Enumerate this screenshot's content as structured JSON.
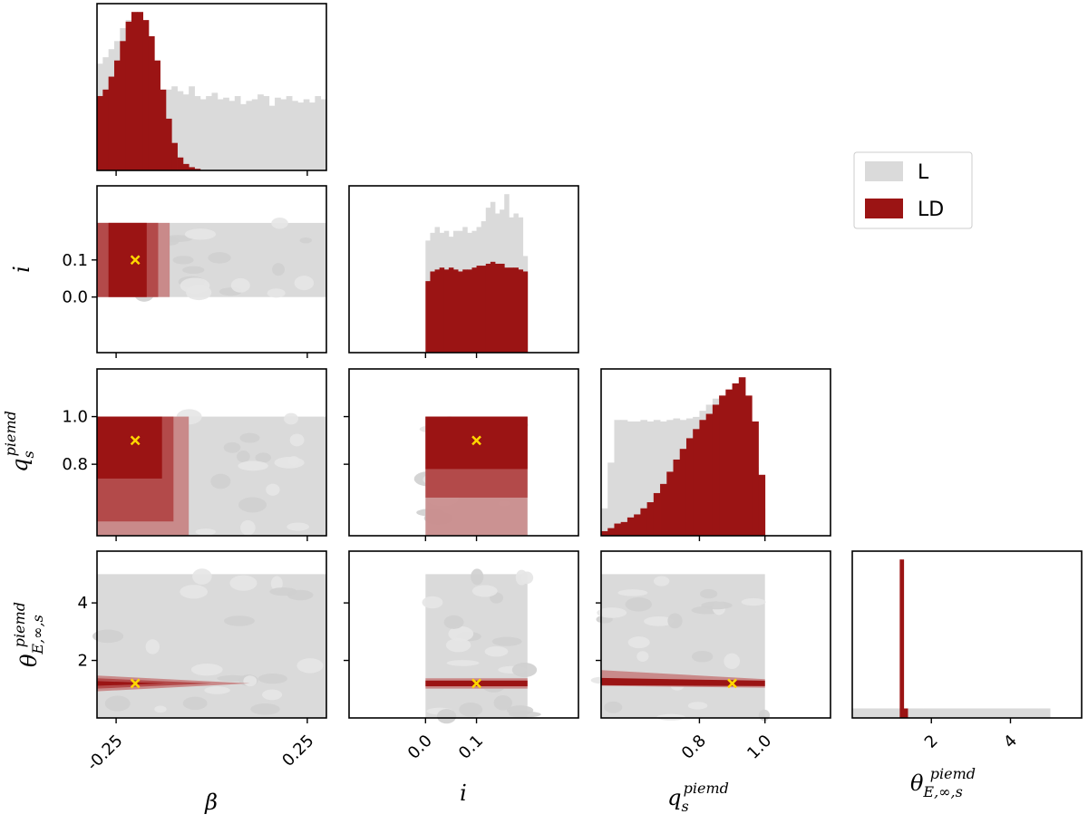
{
  "chart_data": {
    "type": "corner",
    "colors": {
      "L": "#dadada",
      "LD": "#9b1414",
      "LD_mid": "#b34a4a",
      "LD_light": "#c98a8a",
      "truth": "#ffd700",
      "L_light": "#e6e6e6",
      "L_dark": "#cfcfcf"
    },
    "legend": {
      "placement": "right",
      "entries": [
        {
          "label": "L",
          "color": "#dadada"
        },
        {
          "label": "LD",
          "color": "#9b1414"
        }
      ]
    },
    "parameters": [
      {
        "key": "beta",
        "symbol": "β",
        "range": [
          -0.3,
          0.3
        ],
        "truth": -0.2,
        "ticks": [
          {
            "value": -0.25,
            "label": "-0.25"
          },
          {
            "value": 0.25,
            "label": "0.25"
          }
        ],
        "prior": [
          -0.3,
          0.3
        ]
      },
      {
        "key": "i",
        "symbol": "i",
        "range": [
          -0.15,
          0.3
        ],
        "truth": 0.1,
        "ticks": [
          {
            "value": 0.0,
            "label": "0.0"
          },
          {
            "value": 0.1,
            "label": "0.1"
          }
        ],
        "prior": [
          0.0,
          0.2
        ]
      },
      {
        "key": "q",
        "symbol": "q",
        "sub": "s",
        "sup": "piemd",
        "range": [
          0.5,
          1.2
        ],
        "truth": 0.9,
        "ticks": [
          {
            "value": 0.8,
            "label": "0.8"
          },
          {
            "value": 1.0,
            "label": "1.0"
          }
        ],
        "prior": [
          0.5,
          1.0
        ]
      },
      {
        "key": "theta",
        "symbol": "θ",
        "sub": "E,∞,s",
        "sup": "piemd",
        "range": [
          0.0,
          5.8
        ],
        "truth": 1.2,
        "ticks": [
          {
            "value": 2,
            "label": "2"
          },
          {
            "value": 4,
            "label": "4"
          }
        ],
        "prior": [
          0.0,
          5.0
        ]
      }
    ],
    "histograms": {
      "beta": {
        "bins": [
          -0.3,
          0.3
        ],
        "L": [
          66,
          70,
          75,
          80,
          88,
          93,
          95,
          85,
          70,
          52,
          44,
          46,
          50,
          52,
          49,
          47,
          52,
          46,
          44,
          46,
          48,
          44,
          45,
          43,
          46,
          41,
          43,
          44,
          47,
          46,
          40,
          45,
          44,
          46,
          43,
          42,
          44,
          42,
          46,
          44
        ],
        "LD": [
          46,
          50,
          58,
          68,
          80,
          92,
          98,
          98,
          93,
          83,
          68,
          50,
          32,
          17,
          8,
          4,
          2,
          1,
          0,
          0,
          0,
          0,
          0,
          0,
          0,
          0,
          0,
          0,
          0,
          0,
          0,
          0,
          0,
          0,
          0,
          0,
          0,
          0,
          0,
          0
        ]
      },
      "i": {
        "bins": [
          0.0,
          0.2
        ],
        "L": [
          58,
          62,
          65,
          62,
          63,
          60,
          63,
          63,
          65,
          62,
          63,
          65,
          68,
          75,
          78,
          72,
          74,
          82,
          70,
          72,
          70,
          50
        ],
        "LD": [
          37,
          42,
          43,
          44,
          43,
          44,
          43,
          42,
          43,
          43,
          44,
          45,
          45,
          46,
          47,
          46,
          46,
          44,
          44,
          44,
          43,
          42
        ]
      },
      "q": {
        "bins": [
          0.5,
          1.0
        ],
        "L": [
          18,
          48,
          76,
          76,
          75,
          75,
          76,
          75,
          76,
          75,
          76,
          77,
          76,
          77,
          78,
          82,
          86,
          90,
          92,
          95,
          92,
          90,
          70,
          45,
          18
        ],
        "LD": [
          3,
          5,
          8,
          9,
          12,
          14,
          18,
          22,
          28,
          34,
          42,
          50,
          57,
          64,
          70,
          76,
          80,
          86,
          92,
          96,
          100,
          104,
          92,
          75,
          40
        ]
      },
      "theta": {
        "bins": [
          0.0,
          5.0
        ],
        "L": [
          6,
          6,
          6,
          6,
          6,
          6,
          6,
          6,
          6,
          6,
          6,
          6,
          6,
          6,
          6,
          6,
          6,
          6,
          6,
          6,
          6,
          6,
          6,
          6,
          6,
          6,
          6,
          6,
          6,
          6,
          6,
          6,
          6,
          6,
          6,
          6,
          6,
          6,
          6,
          6,
          6,
          6,
          6,
          6,
          6,
          6,
          6,
          6,
          6,
          6
        ],
        "LD": [
          0,
          0,
          0,
          0,
          0,
          0,
          0,
          0,
          0,
          0,
          0,
          0,
          100,
          6,
          0,
          0,
          0,
          0,
          0,
          0,
          0,
          0,
          0,
          0,
          0,
          0,
          0,
          0,
          0,
          0,
          0,
          0,
          0,
          0,
          0,
          0,
          0,
          0,
          0,
          0,
          0,
          0,
          0,
          0,
          0,
          0,
          0,
          0,
          0,
          0
        ]
      }
    },
    "contours": {
      "i_vs_beta": {
        "LD_region": {
          "x": [
            -0.3,
            -0.11
          ],
          "y": [
            0.0,
            0.2
          ]
        },
        "core": {
          "x": [
            -0.27,
            -0.17
          ],
          "y": [
            0.0,
            0.2
          ]
        }
      },
      "q_vs_beta": {
        "LD_region": {
          "x": [
            -0.3,
            -0.06
          ],
          "y": [
            0.5,
            1.0
          ]
        },
        "core": {
          "x": [
            -0.3,
            -0.13
          ],
          "y": [
            0.74,
            1.0
          ]
        }
      },
      "q_vs_i": {
        "LD_region": {
          "x": [
            0.0,
            0.2
          ],
          "y": [
            0.5,
            1.0
          ]
        },
        "core": {
          "x": [
            0.0,
            0.2
          ],
          "y": [
            0.78,
            1.0
          ]
        }
      },
      "theta_band": {
        "center": 1.2,
        "halfwidth": 0.18
      }
    }
  }
}
